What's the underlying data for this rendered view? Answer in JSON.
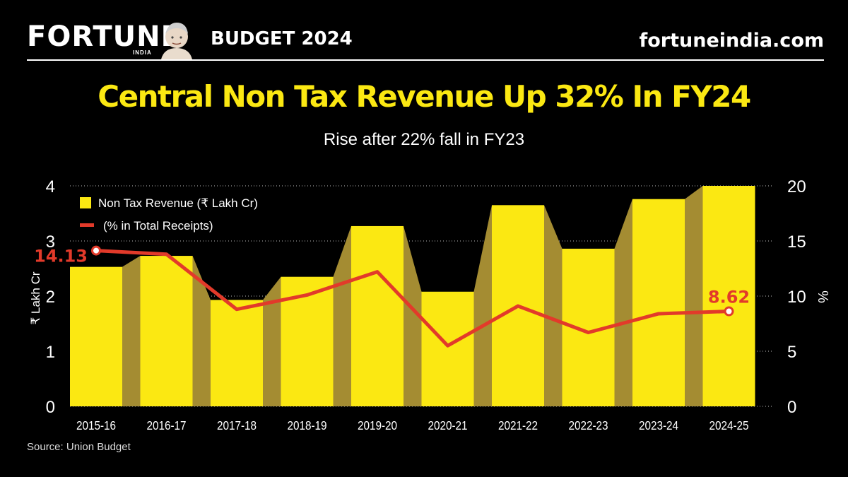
{
  "header": {
    "brand": "FORTUNE",
    "brand_sub": "INDIA",
    "section": "BUDGET 2024",
    "site": "fortuneindia.com"
  },
  "chart_data": {
    "type": "bar",
    "title": "Central Non Tax Revenue Up 32% In FY24",
    "subtitle": "Rise after 22% fall in FY23",
    "categories": [
      "2015-16",
      "2016-17",
      "2017-18",
      "2018-19",
      "2019-20",
      "2020-21",
      "2021-22",
      "2022-23",
      "2023-24",
      "2024-25"
    ],
    "series": [
      {
        "name": "Non Tax Revenue (₹ Lakh Cr)",
        "type": "bar",
        "axis": "left",
        "values": [
          2.53,
          2.73,
          1.93,
          2.35,
          3.27,
          2.08,
          3.65,
          2.86,
          3.76,
          4.0
        ]
      },
      {
        "name": "(% in Total Receipts)",
        "type": "line",
        "axis": "right",
        "values": [
          14.13,
          13.8,
          8.8,
          10.1,
          12.2,
          5.5,
          9.1,
          6.7,
          8.4,
          8.62
        ]
      }
    ],
    "annotations": [
      {
        "index": 0,
        "text": "14.13"
      },
      {
        "index": 9,
        "text": "8.62"
      }
    ],
    "ylabel": "₹ Lakh Cr",
    "ylabel_right": "%",
    "ylim": [
      0,
      4
    ],
    "ylim_right": [
      0,
      20
    ],
    "yticks": [
      "0",
      "1",
      "2",
      "3",
      "4"
    ],
    "yticks_right": [
      "0",
      "5",
      "10",
      "15",
      "20"
    ],
    "legend_position": "top-left",
    "colors": {
      "bar": "#fbe812",
      "connector": "#a48c32",
      "line": "#e23a2a",
      "grid": "#bdbdbd"
    }
  },
  "footer": {
    "source": "Source: Union Budget"
  }
}
